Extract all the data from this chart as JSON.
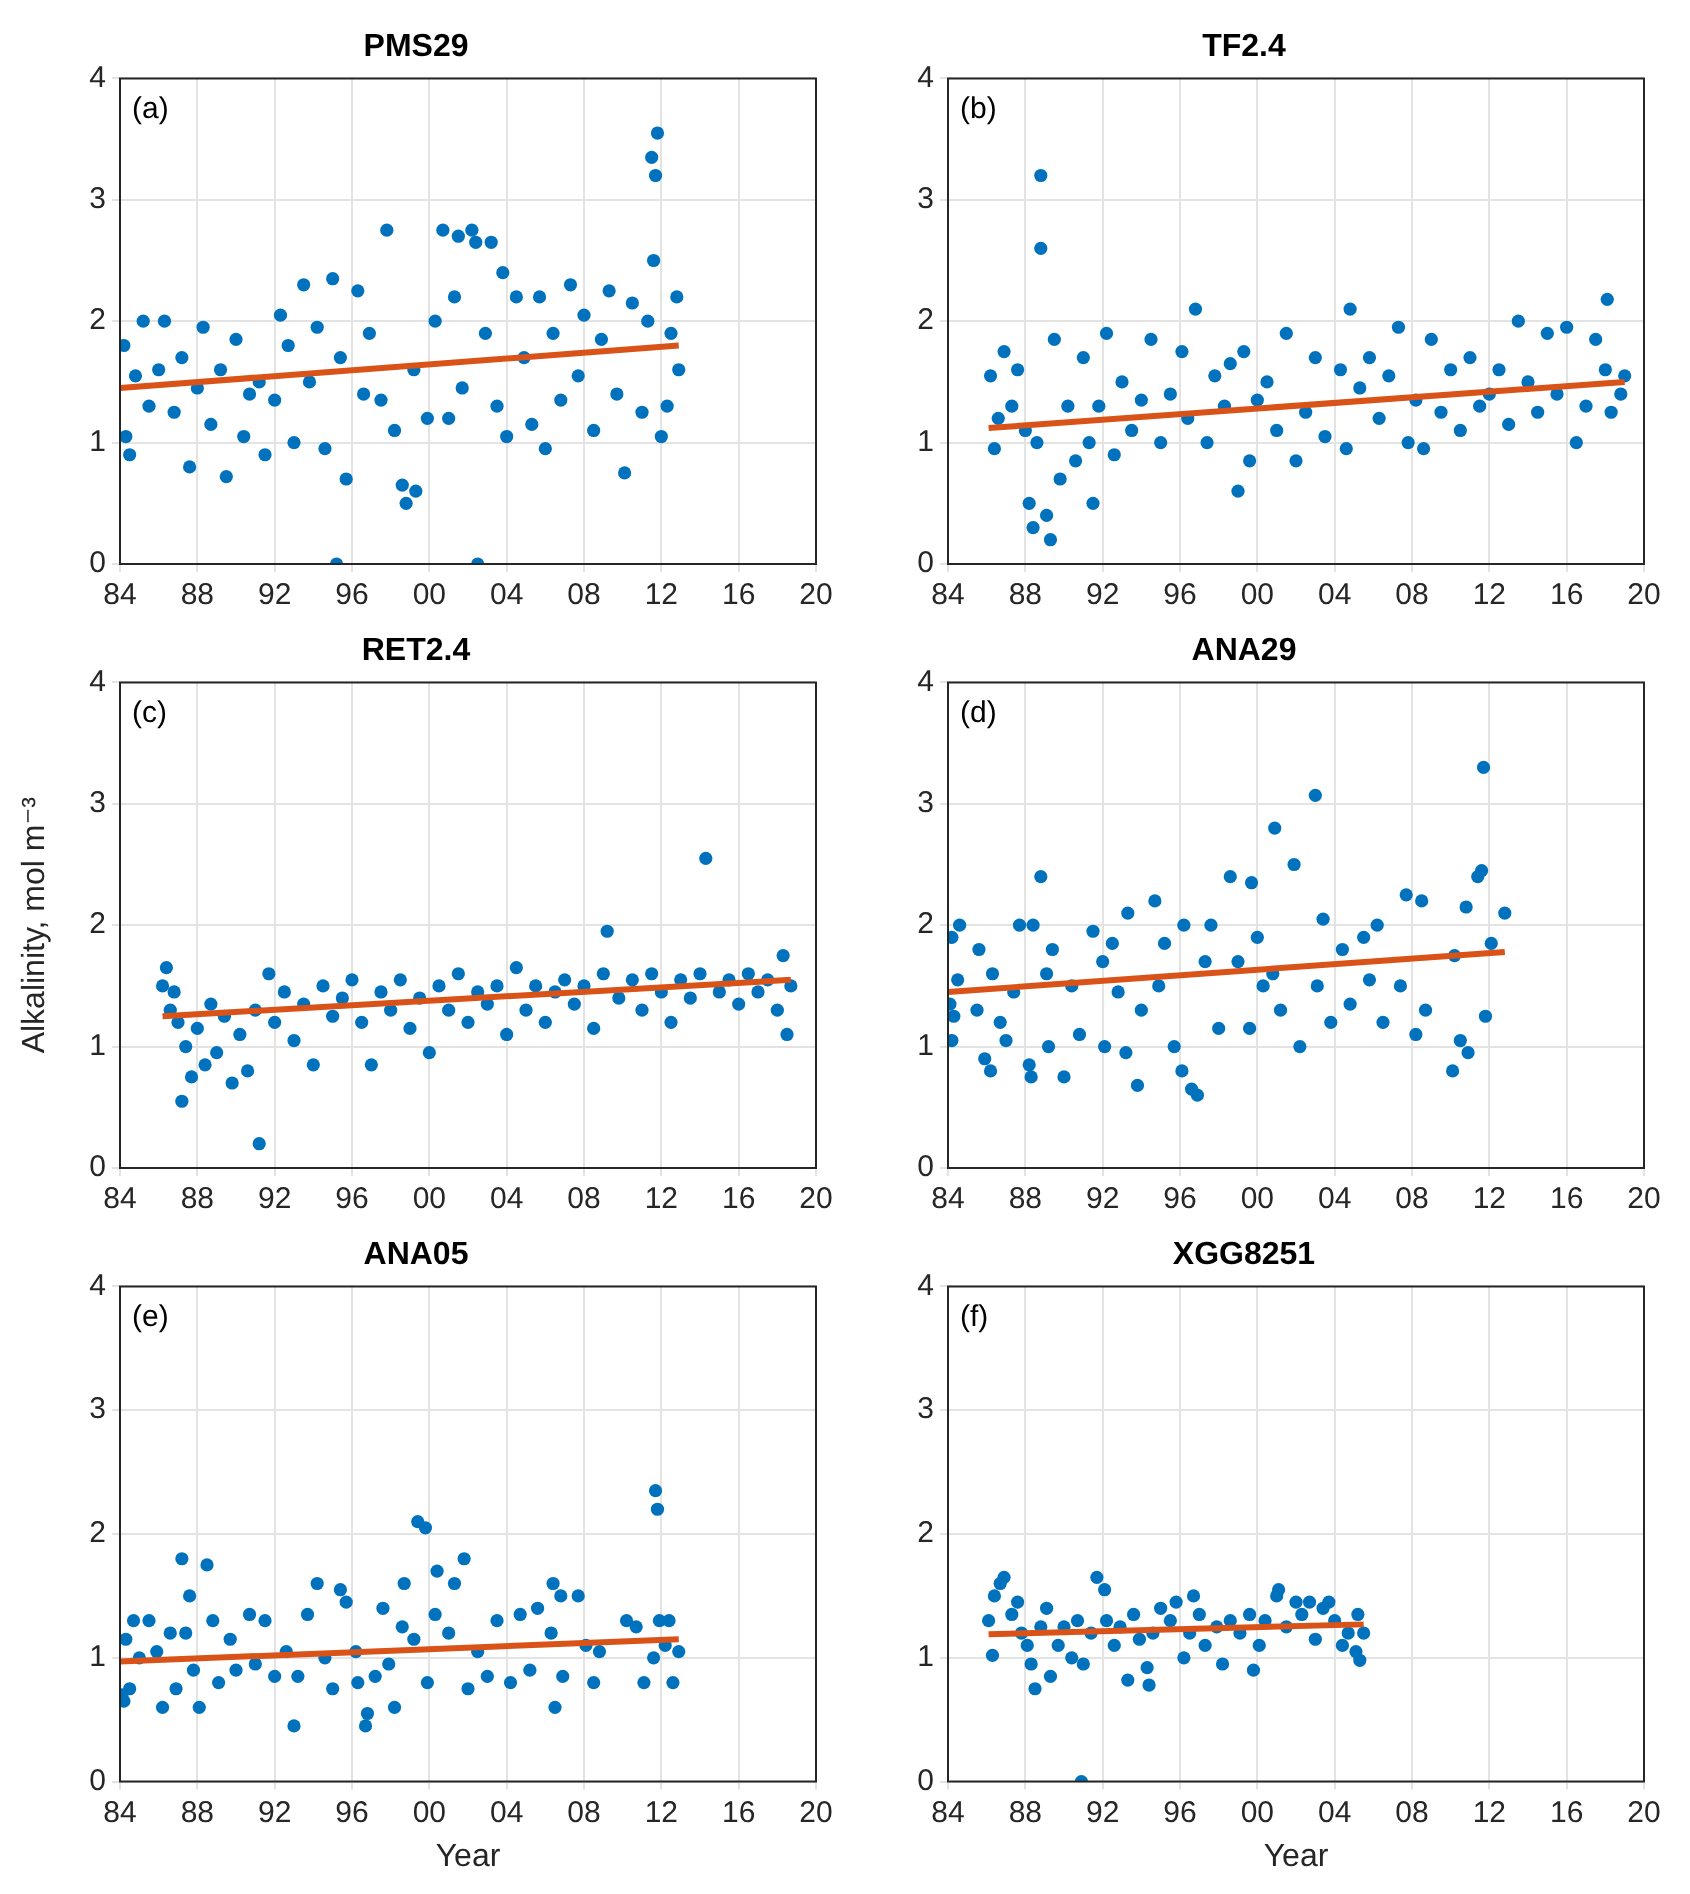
{
  "chart_data": [
    {
      "type": "scatter",
      "title": "PMS29",
      "annotations": [
        "(a)"
      ],
      "xlim": [
        1984,
        2020
      ],
      "xticks": [
        {
          "value": 1984,
          "label": "84"
        },
        {
          "value": 1988,
          "label": "88"
        },
        {
          "value": 1992,
          "label": "92"
        },
        {
          "value": 1996,
          "label": "96"
        },
        {
          "value": 2000,
          "label": "00"
        },
        {
          "value": 2004,
          "label": "04"
        },
        {
          "value": 2008,
          "label": "08"
        },
        {
          "value": 2012,
          "label": "12"
        },
        {
          "value": 2016,
          "label": "16"
        },
        {
          "value": 2020,
          "label": "20"
        }
      ],
      "ylim": [
        0,
        4
      ],
      "yticks": [
        0,
        1,
        2,
        3,
        4
      ],
      "grid": true,
      "marker": "circle",
      "series": [
        {
          "color": "#0072bd",
          "x": [
            1984.2,
            1984.3,
            1984.5,
            1984.8,
            1985.2,
            1985.5,
            1986,
            1986.3,
            1986.8,
            1987.2,
            1987.6,
            1988,
            1988.3,
            1988.7,
            1989.2,
            1989.5,
            1990,
            1990.4,
            1990.7,
            1991.2,
            1991.5,
            1992,
            1992.3,
            1992.7,
            1993,
            1993.5,
            1993.8,
            1994.2,
            1994.6,
            1995,
            1995.2,
            1995.4,
            1995.7,
            1996.3,
            1996.6,
            1996.9,
            1997.5,
            1997.8,
            1998.2,
            1998.6,
            1998.8,
            1999.2,
            1999.3,
            1999.9,
            2000.3,
            2000.7,
            2001,
            2001.3,
            2001.5,
            2001.7,
            2002.2,
            2002.4,
            2002.5,
            2002.9,
            2003.2,
            2003.5,
            2003.8,
            2004,
            2004.5,
            2004.9,
            2005.3,
            2005.7,
            2006,
            2006.4,
            2006.8,
            2007.3,
            2007.7,
            2008,
            2008.5,
            2008.9,
            2009.3,
            2009.7,
            2010.1,
            2010.5,
            2011,
            2011.3,
            2011.5,
            2011.6,
            2011.7,
            2011.8,
            2012,
            2012.3,
            2012.5,
            2012.8,
            2012.9
          ],
          "values": [
            1.8,
            1.05,
            0.9,
            1.55,
            2.0,
            1.3,
            1.6,
            2.0,
            1.25,
            1.7,
            0.8,
            1.45,
            1.95,
            1.15,
            1.6,
            0.72,
            1.85,
            1.05,
            1.4,
            1.5,
            0.9,
            1.35,
            2.05,
            1.8,
            1.0,
            2.3,
            1.5,
            1.95,
            0.95,
            2.35,
            0.0,
            1.7,
            0.7,
            2.25,
            1.4,
            1.9,
            1.35,
            2.75,
            1.1,
            0.65,
            0.5,
            1.6,
            0.6,
            1.2,
            2.0,
            2.75,
            1.2,
            2.2,
            2.7,
            1.45,
            2.75,
            2.65,
            0.0,
            1.9,
            2.65,
            1.3,
            2.4,
            1.05,
            2.2,
            1.7,
            1.15,
            2.2,
            0.95,
            1.9,
            1.35,
            2.3,
            1.55,
            2.05,
            1.1,
            1.85,
            2.25,
            1.4,
            0.75,
            2.15,
            1.25,
            2.0,
            3.35,
            2.5,
            3.2,
            3.55,
            1.05,
            1.3,
            1.9,
            2.2,
            1.6
          ]
        },
        {
          "type": "line",
          "color": "#d95319",
          "marker": "none",
          "x": [
            1984,
            2012.9
          ],
          "values": [
            1.45,
            1.8
          ]
        }
      ]
    },
    {
      "type": "scatter",
      "title": "TF2.4",
      "annotations": [
        "(b)"
      ],
      "xlim": [
        1984,
        2020
      ],
      "xticks": [
        {
          "value": 1984,
          "label": "84"
        },
        {
          "value": 1988,
          "label": "88"
        },
        {
          "value": 1992,
          "label": "92"
        },
        {
          "value": 1996,
          "label": "96"
        },
        {
          "value": 2000,
          "label": "00"
        },
        {
          "value": 2004,
          "label": "04"
        },
        {
          "value": 2008,
          "label": "08"
        },
        {
          "value": 2012,
          "label": "12"
        },
        {
          "value": 2016,
          "label": "16"
        },
        {
          "value": 2020,
          "label": "20"
        }
      ],
      "ylim": [
        0,
        4
      ],
      "yticks": [
        0,
        1,
        2,
        3,
        4
      ],
      "grid": true,
      "marker": "circle",
      "series": [
        {
          "color": "#0072bd",
          "x": [
            1986.2,
            1986.4,
            1986.6,
            1986.9,
            1987.3,
            1987.6,
            1988,
            1988.2,
            1988.4,
            1988.6,
            1988.8,
            1988.8,
            1989.1,
            1989.3,
            1989.5,
            1989.8,
            1990.2,
            1990.6,
            1991,
            1991.3,
            1991.5,
            1991.8,
            1992.2,
            1992.6,
            1993,
            1993.5,
            1994,
            1994.5,
            1995,
            1995.5,
            1996.8,
            1996.4,
            1996.1,
            1997.4,
            1997.8,
            1998.3,
            1998.6,
            1999,
            1999.3,
            1999.6,
            2000,
            2000.5,
            2001,
            2001.5,
            2002,
            2002.5,
            2003,
            2003.5,
            2004.8,
            2004.3,
            2004.6,
            2005.3,
            2005.8,
            2006.3,
            2006.8,
            2007.3,
            2007.8,
            2008.2,
            2008.6,
            2009,
            2009.5,
            2010,
            2010.5,
            2011,
            2011.5,
            2012,
            2012.5,
            2013,
            2013.5,
            2014,
            2014.5,
            2015,
            2015.5,
            2016,
            2016.5,
            2017,
            2017.5,
            2018,
            2018.3,
            2018.1,
            2018.8,
            2019
          ],
          "values": [
            1.55,
            0.95,
            1.2,
            1.75,
            1.3,
            1.6,
            1.1,
            0.5,
            0.3,
            1.0,
            2.6,
            3.2,
            0.4,
            0.2,
            1.85,
            0.7,
            1.3,
            0.85,
            1.7,
            1.0,
            0.5,
            1.3,
            1.9,
            0.9,
            1.5,
            1.1,
            1.35,
            1.85,
            1.0,
            1.4,
            2.1,
            1.2,
            1.75,
            1.0,
            1.55,
            1.3,
            1.65,
            0.6,
            1.75,
            0.85,
            1.35,
            1.5,
            1.1,
            1.9,
            0.85,
            1.25,
            1.7,
            1.05,
            2.1,
            1.6,
            0.95,
            1.45,
            1.7,
            1.2,
            1.55,
            1.95,
            1.0,
            1.35,
            0.95,
            1.85,
            1.25,
            1.6,
            1.1,
            1.7,
            1.3,
            1.4,
            1.6,
            1.15,
            2.0,
            1.5,
            1.25,
            1.9,
            1.4,
            1.95,
            1.0,
            1.3,
            1.85,
            1.6,
            1.25,
            2.18,
            1.4,
            1.55
          ]
        },
        {
          "type": "line",
          "color": "#d95319",
          "marker": "none",
          "x": [
            1986.1,
            2019
          ],
          "values": [
            1.12,
            1.5
          ]
        }
      ]
    },
    {
      "type": "scatter",
      "title": "RET2.4",
      "ylabel": "Alkalinity, mol m⁻³",
      "annotations": [
        "(c)"
      ],
      "xlim": [
        1984,
        2020
      ],
      "xticks": [
        {
          "value": 1984,
          "label": "84"
        },
        {
          "value": 1988,
          "label": "88"
        },
        {
          "value": 1992,
          "label": "92"
        },
        {
          "value": 1996,
          "label": "96"
        },
        {
          "value": 2000,
          "label": "00"
        },
        {
          "value": 2004,
          "label": "04"
        },
        {
          "value": 2008,
          "label": "08"
        },
        {
          "value": 2012,
          "label": "12"
        },
        {
          "value": 2016,
          "label": "16"
        },
        {
          "value": 2020,
          "label": "20"
        }
      ],
      "ylim": [
        0,
        4
      ],
      "yticks": [
        0,
        1,
        2,
        3,
        4
      ],
      "grid": true,
      "marker": "circle",
      "series": [
        {
          "color": "#0072bd",
          "x": [
            1986.2,
            1986.4,
            1986.6,
            1986.8,
            1987,
            1987.2,
            1987.4,
            1987.7,
            1988,
            1988.4,
            1988.7,
            1989,
            1989.4,
            1989.8,
            1990.2,
            1990.6,
            1991,
            1991.2,
            1991.7,
            1992,
            1992.5,
            1993,
            1993.5,
            1994,
            1994.5,
            1995,
            1995.5,
            1996,
            1996.5,
            1997,
            1997.5,
            1998,
            1998.5,
            1999,
            1999.5,
            2000,
            2000.5,
            2001,
            2001.5,
            2002,
            2002.5,
            2003,
            2003.5,
            2004,
            2004.5,
            2005,
            2005.5,
            2006,
            2006.5,
            2007,
            2007.5,
            2008,
            2008.5,
            2009,
            2009.2,
            2009.8,
            2010.5,
            2011,
            2011.5,
            2012,
            2012.5,
            2013,
            2013.5,
            2014,
            2014.3,
            2015,
            2015.5,
            2016,
            2016.5,
            2017,
            2017.5,
            2018,
            2018.3,
            2018.5,
            2018.7
          ],
          "values": [
            1.5,
            1.65,
            1.3,
            1.45,
            1.2,
            0.55,
            1.0,
            0.75,
            1.15,
            0.85,
            1.35,
            0.95,
            1.25,
            0.7,
            1.1,
            0.8,
            1.3,
            0.2,
            1.6,
            1.2,
            1.45,
            1.05,
            1.35,
            0.85,
            1.5,
            1.25,
            1.4,
            1.55,
            1.2,
            0.85,
            1.45,
            1.3,
            1.55,
            1.15,
            1.4,
            0.95,
            1.5,
            1.3,
            1.6,
            1.2,
            1.45,
            1.35,
            1.5,
            1.1,
            1.65,
            1.3,
            1.5,
            1.2,
            1.45,
            1.55,
            1.35,
            1.5,
            1.15,
            1.6,
            1.95,
            1.4,
            1.55,
            1.3,
            1.6,
            1.45,
            1.2,
            1.55,
            1.4,
            1.6,
            2.55,
            1.45,
            1.55,
            1.35,
            1.6,
            1.45,
            1.55,
            1.3,
            1.75,
            1.1,
            1.5
          ]
        },
        {
          "type": "line",
          "color": "#d95319",
          "marker": "none",
          "x": [
            1986.2,
            2018.7
          ],
          "values": [
            1.25,
            1.55
          ]
        }
      ]
    },
    {
      "type": "scatter",
      "title": "ANA29",
      "annotations": [
        "(d)"
      ],
      "xlim": [
        1984,
        2020
      ],
      "xticks": [
        {
          "value": 1984,
          "label": "84"
        },
        {
          "value": 1988,
          "label": "88"
        },
        {
          "value": 1992,
          "label": "92"
        },
        {
          "value": 1996,
          "label": "96"
        },
        {
          "value": 2000,
          "label": "00"
        },
        {
          "value": 2004,
          "label": "04"
        },
        {
          "value": 2008,
          "label": "08"
        },
        {
          "value": 2012,
          "label": "12"
        },
        {
          "value": 2016,
          "label": "16"
        },
        {
          "value": 2020,
          "label": "20"
        }
      ],
      "ylim": [
        0,
        4
      ],
      "yticks": [
        0,
        1,
        2,
        3,
        4
      ],
      "grid": true,
      "marker": "circle",
      "series": [
        {
          "color": "#0072bd",
          "x": [
            1984.1,
            1984.2,
            1984.2,
            1984.3,
            1984.6,
            1984.5,
            1985.5,
            1985.6,
            1985.9,
            1986.2,
            1986.3,
            1986.7,
            1987.7,
            1987,
            1987.4,
            1988.4,
            1988.2,
            1988.3,
            1988.8,
            1989.1,
            1989.2,
            1989.4,
            1990,
            1990.4,
            1990.8,
            1991.5,
            1992,
            1992.1,
            1992.5,
            1992.8,
            1993.3,
            1993.2,
            1993.8,
            1994,
            1994.7,
            1994.9,
            1995.2,
            1995.7,
            1996.2,
            1996.1,
            1996.6,
            1996.9,
            1997.3,
            1997.6,
            1998,
            1998.6,
            1999,
            1999.7,
            1999.6,
            2000,
            2000.3,
            2000.9,
            2000.8,
            2001.2,
            2001.9,
            2002.2,
            2003,
            2003.1,
            2003.4,
            2003.8,
            2004.4,
            2004.8,
            2005.5,
            2005.8,
            2006.2,
            2006.5,
            2007.7,
            2007.4,
            2008.2,
            2008.5,
            2008.7,
            2010.1,
            2010.2,
            2010.5,
            2010.9,
            2010.8,
            2011.4,
            2011.7,
            2011.6,
            2011.8,
            2012.1,
            2012.8
          ],
          "values": [
            1.35,
            1.05,
            1.9,
            1.25,
            2.0,
            1.55,
            1.3,
            1.8,
            0.9,
            0.8,
            1.6,
            1.2,
            2.0,
            1.05,
            1.45,
            2.0,
            0.85,
            0.75,
            2.4,
            1.6,
            1.0,
            1.8,
            0.75,
            1.5,
            1.1,
            1.95,
            1.7,
            1.0,
            1.85,
            1.45,
            2.1,
            0.95,
            0.68,
            1.3,
            2.2,
            1.5,
            1.85,
            1.0,
            2.0,
            0.8,
            0.65,
            0.6,
            1.7,
            2.0,
            1.15,
            2.4,
            1.7,
            2.35,
            1.15,
            1.9,
            1.5,
            2.8,
            1.6,
            1.3,
            2.5,
            1.0,
            3.07,
            1.5,
            2.05,
            1.2,
            1.8,
            1.35,
            1.9,
            1.55,
            2.0,
            1.2,
            2.25,
            1.5,
            1.1,
            2.2,
            1.3,
            0.8,
            1.75,
            1.05,
            0.95,
            2.15,
            2.4,
            3.3,
            2.45,
            1.25,
            1.85,
            2.1
          ]
        },
        {
          "type": "line",
          "color": "#d95319",
          "marker": "none",
          "x": [
            1984,
            2012.8
          ],
          "values": [
            1.45,
            1.78
          ]
        }
      ]
    },
    {
      "type": "scatter",
      "title": "ANA05",
      "xlabel": "Year",
      "annotations": [
        "(e)"
      ],
      "xlim": [
        1984,
        2020
      ],
      "xticks": [
        {
          "value": 1984,
          "label": "84"
        },
        {
          "value": 1988,
          "label": "88"
        },
        {
          "value": 1992,
          "label": "92"
        },
        {
          "value": 1996,
          "label": "96"
        },
        {
          "value": 2000,
          "label": "00"
        },
        {
          "value": 2004,
          "label": "04"
        },
        {
          "value": 2008,
          "label": "08"
        },
        {
          "value": 2012,
          "label": "12"
        },
        {
          "value": 2016,
          "label": "16"
        },
        {
          "value": 2020,
          "label": "20"
        }
      ],
      "ylim": [
        0,
        4
      ],
      "yticks": [
        0,
        1,
        2,
        3,
        4
      ],
      "grid": true,
      "marker": "circle",
      "series": [
        {
          "color": "#0072bd",
          "x": [
            1984.1,
            1984.2,
            1984.3,
            1984.5,
            1984.7,
            1985,
            1985.5,
            1985.9,
            1986.2,
            1986.6,
            1986.9,
            1987.2,
            1987.4,
            1987.6,
            1987.8,
            1988.1,
            1988.5,
            1988.8,
            1989.1,
            1989.7,
            1990,
            1990.7,
            1991,
            1991.5,
            1992,
            1992.6,
            1993,
            1993.2,
            1993.7,
            1994.2,
            1994.6,
            1995,
            1995.4,
            1995.7,
            1996.2,
            1996.3,
            1996.7,
            1996.8,
            1997.2,
            1997.6,
            1997.9,
            1998.2,
            1998.6,
            1998.7,
            1999.2,
            1999.4,
            1999.8,
            1999.9,
            2000.3,
            2000.4,
            2001,
            2001.3,
            2001.8,
            2002,
            2002.5,
            2003,
            2003.5,
            2004.2,
            2004.7,
            2005.2,
            2005.6,
            2006.3,
            2006.4,
            2006.5,
            2006.8,
            2006.9,
            2007.7,
            2008.1,
            2008.5,
            2008.8,
            2010.2,
            2010.7,
            2011.1,
            2011.6,
            2011.7,
            2011.8,
            2011.9,
            2012.2,
            2012.4,
            2012.6,
            2012.9
          ],
          "values": [
            0.7,
            0.65,
            1.15,
            0.75,
            1.3,
            1.0,
            1.3,
            1.05,
            0.6,
            1.2,
            0.75,
            1.8,
            1.2,
            1.5,
            0.9,
            0.6,
            1.75,
            1.3,
            0.8,
            1.15,
            0.9,
            1.35,
            0.95,
            1.3,
            0.85,
            1.05,
            0.45,
            0.85,
            1.35,
            1.6,
            1.0,
            0.75,
            1.55,
            1.45,
            1.05,
            0.8,
            0.45,
            0.55,
            0.85,
            1.4,
            0.95,
            0.6,
            1.25,
            1.6,
            1.15,
            2.1,
            2.05,
            0.8,
            1.35,
            1.7,
            1.2,
            1.6,
            1.8,
            0.75,
            1.05,
            0.85,
            1.3,
            0.8,
            1.35,
            0.9,
            1.4,
            1.2,
            1.6,
            0.6,
            1.5,
            0.85,
            1.5,
            1.1,
            0.8,
            1.05,
            1.3,
            1.25,
            0.8,
            1.0,
            2.35,
            2.2,
            1.3,
            1.1,
            1.3,
            0.8,
            1.05
          ]
        },
        {
          "type": "line",
          "color": "#d95319",
          "marker": "none",
          "x": [
            1984,
            2012.9
          ],
          "values": [
            0.97,
            1.15
          ]
        }
      ]
    },
    {
      "type": "scatter",
      "title": "XGG8251",
      "xlabel": "Year",
      "annotations": [
        "(f)"
      ],
      "xlim": [
        1984,
        2020
      ],
      "xticks": [
        {
          "value": 1984,
          "label": "84"
        },
        {
          "value": 1988,
          "label": "88"
        },
        {
          "value": 1992,
          "label": "92"
        },
        {
          "value": 1996,
          "label": "96"
        },
        {
          "value": 2000,
          "label": "00"
        },
        {
          "value": 2004,
          "label": "04"
        },
        {
          "value": 2008,
          "label": "08"
        },
        {
          "value": 2012,
          "label": "12"
        },
        {
          "value": 2016,
          "label": "16"
        },
        {
          "value": 2020,
          "label": "20"
        }
      ],
      "ylim": [
        0,
        4
      ],
      "yticks": [
        0,
        1,
        2,
        3,
        4
      ],
      "grid": true,
      "marker": "circle",
      "series": [
        {
          "color": "#0072bd",
          "x": [
            1986.1,
            1986.3,
            1986.4,
            1986.7,
            1986.9,
            1987.3,
            1987.6,
            1987.8,
            1988.1,
            1988.3,
            1988.5,
            1988.8,
            1989.1,
            1989.3,
            1989.7,
            1990,
            1990.4,
            1990.7,
            1990.9,
            1991,
            1991.4,
            1991.7,
            1992.1,
            1992.2,
            1992.6,
            1992.9,
            1993.3,
            1993.6,
            1993.9,
            1994.3,
            1994.4,
            1994.6,
            1995,
            1995.5,
            1995.8,
            1996.2,
            1996.5,
            1996.7,
            1997,
            1997.3,
            1997.9,
            1998.2,
            1998.6,
            1999.1,
            1999.6,
            1999.8,
            2000.1,
            2000.4,
            2001,
            2001.1,
            2001.5,
            2002,
            2002.3,
            2002.7,
            2003,
            2003.4,
            2003.7,
            2004,
            2004.4,
            2004.7,
            2005.1,
            2005.2,
            2005.3,
            2005.5
          ],
          "values": [
            1.3,
            1.02,
            1.5,
            1.6,
            1.65,
            1.35,
            1.45,
            1.2,
            1.1,
            0.95,
            0.75,
            1.25,
            1.4,
            0.85,
            1.1,
            1.25,
            1.0,
            1.3,
            0.0,
            0.95,
            1.2,
            1.65,
            1.55,
            1.3,
            1.1,
            1.25,
            0.82,
            1.35,
            1.15,
            0.92,
            0.78,
            1.2,
            1.4,
            1.3,
            1.45,
            1.0,
            1.2,
            1.5,
            1.35,
            1.1,
            1.25,
            0.95,
            1.3,
            1.2,
            1.35,
            0.9,
            1.1,
            1.3,
            1.5,
            1.55,
            1.25,
            1.45,
            1.35,
            1.45,
            1.15,
            1.4,
            1.45,
            1.3,
            1.1,
            1.2,
            1.05,
            1.35,
            0.98,
            1.2
          ]
        },
        {
          "type": "line",
          "color": "#d95319",
          "marker": "none",
          "x": [
            1986.1,
            2005.5
          ],
          "values": [
            1.19,
            1.27
          ]
        }
      ]
    }
  ]
}
